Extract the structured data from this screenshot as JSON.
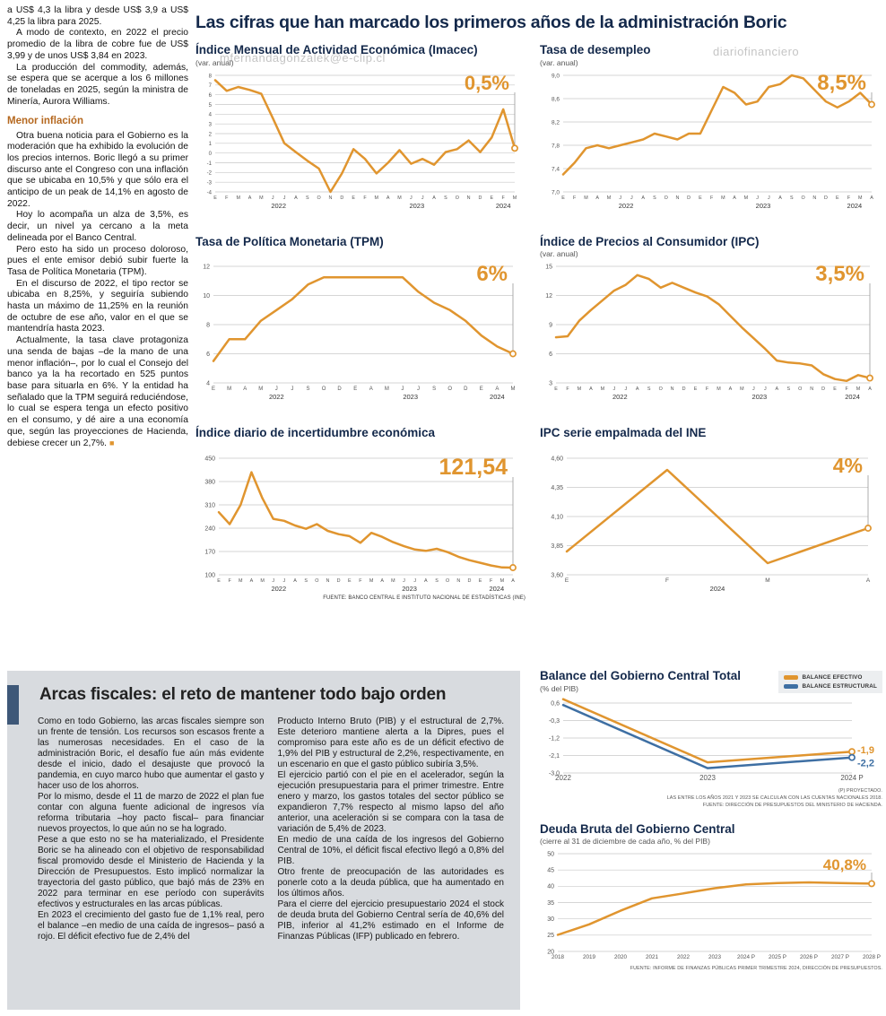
{
  "theme": {
    "orange": "#E0952F",
    "blue": "#3E6FA3",
    "navy": "#14294B",
    "panel": "#D8DBDF",
    "subhead": "#B5681F",
    "bar": "#3E5878"
  },
  "watermarks": {
    "mid": "mfernandagonzalek@e-clip.cl",
    "top_right": "diariofinanciero",
    "bottom": "mfernandagonzalek@e-clip.cl"
  },
  "left_article": {
    "paragraphs": [
      "a US$ 4,3 la libra y desde US$ 3,9 a US$ 4,25 la libra para 2025.",
      "A modo de contexto, en 2022 el precio promedio de la libra de cobre fue de US$ 3,99 y de unos US$ 3,84 en 2023.",
      "La producción del commodity, además, se espera que se acerque a los 6 millones de toneladas en 2025, según la ministra de Minería, Aurora Williams."
    ],
    "subhead": "Menor inflación",
    "paragraphs2": [
      "Otra buena noticia para el Gobierno es la moderación que ha exhibido la evolución de los precios internos. Boric llegó a su primer discurso ante el Congreso con una inflación que se ubicaba en 10,5% y que sólo era el anticipo de un peak de 14,1% en agosto de 2022.",
      "Hoy lo acompaña un alza de 3,5%, es decir, un nivel ya cercano a la meta delineada por el Banco Central.",
      "Pero esto ha sido un proceso doloroso, pues el ente emisor debió subir fuerte la Tasa de Política Monetaria (TPM).",
      "En el discurso de 2022, el tipo rector se ubicaba en 8,25%, y seguiría subiendo hasta un máximo de 11,25% en la reunión de octubre de ese año, valor en el que se mantendría hasta 2023.",
      "Actualmente, la tasa clave protagoniza una senda de bajas –de la mano de una menor inflación–, por lo cual el Consejo del banco ya la ha recortado en 525 puntos base para situarla en 6%. Y la entidad ha señalado que la TPM seguirá reduciéndose, lo cual se espera tenga un efecto positivo en el consumo, y dé aire a una economía que, según las proyecciones de Hacienda, debiese crecer un 2,7%."
    ],
    "end_mark": "■"
  },
  "main": {
    "title": "Las cifras que han marcado los primeros años de la administración Boric",
    "source": "FUENTE: BANCO CENTRAL E INSTITUTO NACIONAL DE ESTADÍSTICAS (INE)"
  },
  "fiscal": {
    "title": "Arcas fiscales: el reto de mantener todo bajo orden",
    "col1": [
      "Como en todo Gobierno, las arcas fiscales siempre son un frente de tensión. Los recursos son escasos frente a las numerosas necesidades. En el caso de la administración Boric, el desafío fue aún más evidente desde el inicio, dado el desajuste que provocó la pandemia, en cuyo marco hubo que aumentar el gasto y hacer uso de los ahorros.",
      "Por lo mismo, desde el 11 de marzo de 2022 el plan fue contar con alguna fuente adicional de ingresos vía reforma tributaria –hoy pacto fiscal– para financiar nuevos proyectos, lo que aún no se ha logrado.",
      "Pese a que esto no se ha materializado, el Presidente Boric se ha alineado con el objetivo de responsabilidad fiscal promovido desde el Ministerio de Hacienda y la Dirección de Presupuestos. Esto implicó normalizar la trayectoria del gasto público, que bajó más de 23% en 2022 para terminar en ese período con superávits efectivos y estructurales en las arcas públicas.",
      "En 2023 el crecimiento del gasto fue de 1,1% real, pero el balance –en medio de una caída de ingresos– pasó a rojo. El déficit efectivo fue de 2,4% del"
    ],
    "col2": [
      "Producto Interno Bruto (PIB) y el estructural de 2,7%. Este deterioro mantiene alerta a la Dipres, pues el compromiso para este año es de un déficit efectivo de 1,9% del PIB y estructural de 2,2%, respectivamente, en un escenario en que el gasto público subiría 3,5%.",
      "El ejercicio partió con el pie en el acelerador, según la ejecución presupuestaria para el primer trimestre. Entre enero y marzo, los gastos totales del sector público se expandieron 7,7% respecto al mismo lapso del año anterior, una aceleración si se compara con la tasa de variación de 5,4% de 2023.",
      "En medio de una caída de los ingresos del Gobierno Central de 10%, el déficit fiscal efectivo llegó a 0,8% del PIB.",
      "Otro frente de preocupación de las autoridades es ponerle coto a la deuda pública, que ha aumentado en los últimos años.",
      "Para el cierre del ejercicio presupuestario 2024 el stock de deuda bruta del Gobierno Central sería de 40,6% del PIB, inferior al 41,2% estimado en el Informe de Finanzas Públicas (IFP) publicado en febrero."
    ]
  },
  "chart_data": [
    {
      "id": "imacec",
      "type": "line",
      "title": "Índice Mensual de Actividad Económica (Imacec)",
      "subtitle": "(var. anual)",
      "value_label": "0,5%",
      "ylim": [
        -4,
        8
      ],
      "yticks": [
        8,
        7,
        6,
        5,
        4,
        3,
        2,
        1,
        0,
        -1,
        -2,
        -3,
        -4
      ],
      "ytick_labels": [
        "8",
        "7",
        "6",
        "5",
        "4",
        "3",
        "2",
        "1",
        "0",
        "-1",
        "-2",
        "-3",
        "-4"
      ],
      "x_labels": [
        "E",
        "F",
        "M",
        "A",
        "M",
        "J",
        "J",
        "A",
        "S",
        "O",
        "N",
        "D",
        "E",
        "F",
        "M",
        "A",
        "M",
        "J",
        "J",
        "A",
        "S",
        "O",
        "N",
        "D",
        "E",
        "F",
        "M"
      ],
      "year_groups": [
        {
          "label": "2022",
          "start": 0,
          "end": 11
        },
        {
          "label": "2023",
          "start": 12,
          "end": 23
        },
        {
          "label": "2024",
          "start": 24,
          "end": 26
        }
      ],
      "series": [
        {
          "name": "Imacec",
          "color": "#E0952F",
          "marker": true,
          "values": [
            7.5,
            6.4,
            6.8,
            6.5,
            6.1,
            3.6,
            1.0,
            0.1,
            -0.8,
            -1.6,
            -4.0,
            -2.1,
            0.4,
            -0.6,
            -2.1,
            -1.0,
            0.3,
            -1.1,
            -0.6,
            -1.2,
            0.1,
            0.4,
            1.3,
            0.1,
            1.6,
            4.5,
            0.5
          ]
        }
      ],
      "r": {
        "ml": 22,
        "mr": 12,
        "mt": 8,
        "mb": 22,
        "yfs": 6,
        "xfs": 5.4,
        "vfs": 22,
        "vy": 24
      }
    },
    {
      "id": "desempleo",
      "type": "line",
      "title": "Tasa de desempleo",
      "subtitle": "(var. anual)",
      "value_label": "8,5%",
      "ylim": [
        7.0,
        9.0
      ],
      "yticks": [
        9.0,
        8.6,
        8.2,
        7.8,
        7.4,
        7.0
      ],
      "ytick_labels": [
        "9,0",
        "8,6",
        "8,2",
        "7,8",
        "7,4",
        "7,0"
      ],
      "x_labels": [
        "E",
        "F",
        "M",
        "A",
        "M",
        "J",
        "J",
        "A",
        "S",
        "O",
        "N",
        "D",
        "E",
        "F",
        "M",
        "A",
        "M",
        "J",
        "J",
        "A",
        "S",
        "O",
        "N",
        "D",
        "E",
        "F",
        "M",
        "A"
      ],
      "year_groups": [
        {
          "label": "2022",
          "start": 0,
          "end": 11
        },
        {
          "label": "2023",
          "start": 12,
          "end": 23
        },
        {
          "label": "2024",
          "start": 24,
          "end": 27
        }
      ],
      "series": [
        {
          "name": "Tasa de desempleo",
          "color": "#E0952F",
          "marker": true,
          "values": [
            7.3,
            7.5,
            7.75,
            7.8,
            7.75,
            7.8,
            7.85,
            7.9,
            8.0,
            7.95,
            7.9,
            8.0,
            8.0,
            8.4,
            8.8,
            8.7,
            8.5,
            8.55,
            8.8,
            8.85,
            9.0,
            8.95,
            8.75,
            8.55,
            8.45,
            8.55,
            8.7,
            8.5
          ]
        }
      ],
      "r": {
        "ml": 26,
        "mr": 12,
        "mt": 8,
        "mb": 22,
        "yfs": 6.5,
        "xfs": 5.4,
        "vfs": 24,
        "vy": 24
      }
    },
    {
      "id": "tpm",
      "type": "line",
      "title": "Tasa de Política Monetaria (TPM)",
      "subtitle": "",
      "value_label": "6%",
      "ylim": [
        4,
        12
      ],
      "yticks": [
        12,
        10,
        8,
        6,
        4
      ],
      "ytick_labels": [
        "12",
        "10",
        "8",
        "6",
        "4"
      ],
      "x_labels": [
        "E",
        "M",
        "A",
        "M",
        "J",
        "J",
        "S",
        "O",
        "D",
        "E",
        "A",
        "M",
        "J",
        "J",
        "S",
        "O",
        "D",
        "E",
        "A",
        "M"
      ],
      "year_groups": [
        {
          "label": "2022",
          "start": 0,
          "end": 8
        },
        {
          "label": "2023",
          "start": 9,
          "end": 16
        },
        {
          "label": "2024",
          "start": 17,
          "end": 19
        }
      ],
      "series": [
        {
          "name": "TPM",
          "color": "#E0952F",
          "marker": true,
          "values": [
            5.5,
            7.0,
            7.0,
            8.25,
            9.0,
            9.75,
            10.75,
            11.25,
            11.25,
            11.25,
            11.25,
            11.25,
            11.25,
            10.25,
            9.5,
            9.0,
            8.25,
            7.25,
            6.5,
            6.0
          ]
        }
      ],
      "r": {
        "ml": 20,
        "mr": 14,
        "mt": 8,
        "mb": 22,
        "yfs": 7,
        "xfs": 6,
        "vfs": 24,
        "vy": 24
      }
    },
    {
      "id": "ipc",
      "type": "line",
      "title": "Índice de Precios al Consumidor (IPC)",
      "subtitle": "(var. anual)",
      "value_label": "3,5%",
      "ylim": [
        3,
        15
      ],
      "yticks": [
        15,
        12,
        9,
        6,
        3
      ],
      "ytick_labels": [
        "15",
        "12",
        "9",
        "6",
        "3"
      ],
      "x_labels": [
        "E",
        "F",
        "M",
        "A",
        "M",
        "J",
        "J",
        "A",
        "S",
        "O",
        "N",
        "D",
        "E",
        "F",
        "M",
        "A",
        "M",
        "J",
        "J",
        "A",
        "S",
        "O",
        "N",
        "D",
        "E",
        "F",
        "M",
        "A"
      ],
      "year_groups": [
        {
          "label": "2022",
          "start": 0,
          "end": 11
        },
        {
          "label": "2023",
          "start": 12,
          "end": 23
        },
        {
          "label": "2024",
          "start": 24,
          "end": 27
        }
      ],
      "series": [
        {
          "name": "IPC",
          "color": "#E0952F",
          "marker": true,
          "values": [
            7.7,
            7.8,
            9.4,
            10.5,
            11.5,
            12.5,
            13.1,
            14.1,
            13.7,
            12.8,
            13.3,
            12.8,
            12.3,
            11.9,
            11.1,
            9.9,
            8.7,
            7.6,
            6.5,
            5.3,
            5.1,
            5.0,
            4.8,
            3.9,
            3.4,
            3.2,
            3.8,
            3.5
          ]
        }
      ],
      "r": {
        "ml": 18,
        "mr": 14,
        "mt": 8,
        "mb": 22,
        "yfs": 7,
        "xfs": 5.4,
        "vfs": 24,
        "vy": 24
      }
    },
    {
      "id": "incertidumbre",
      "type": "line",
      "title": "Índice diario de incertidumbre económica",
      "subtitle": "",
      "value_label": "121,54",
      "ylim": [
        100,
        450
      ],
      "yticks": [
        450,
        380,
        310,
        240,
        170,
        100
      ],
      "ytick_labels": [
        "450",
        "380",
        "310",
        "240",
        "170",
        "100"
      ],
      "x_labels": [
        "E",
        "F",
        "M",
        "A",
        "M",
        "J",
        "J",
        "A",
        "S",
        "O",
        "N",
        "D",
        "E",
        "F",
        "M",
        "A",
        "M",
        "J",
        "J",
        "A",
        "S",
        "O",
        "N",
        "D",
        "E",
        "F",
        "M",
        "A"
      ],
      "year_groups": [
        {
          "label": "2022",
          "start": 0,
          "end": 11
        },
        {
          "label": "2023",
          "start": 12,
          "end": 23
        },
        {
          "label": "2024",
          "start": 24,
          "end": 27
        }
      ],
      "series": [
        {
          "name": "Incertidumbre económica",
          "color": "#E0952F",
          "marker": true,
          "values": [
            288,
            252,
            310,
            408,
            330,
            268,
            262,
            248,
            238,
            252,
            232,
            222,
            216,
            196,
            226,
            214,
            198,
            186,
            176,
            172,
            178,
            168,
            154,
            144,
            136,
            128,
            122,
            121.54
          ]
        }
      ],
      "r": {
        "ml": 26,
        "mr": 14,
        "mt": 8,
        "mb": 22,
        "yfs": 7,
        "xfs": 5.4,
        "vfs": 25,
        "vy": 26
      }
    },
    {
      "id": "ipc_ine",
      "type": "line",
      "title": "IPC serie empalmada del INE",
      "subtitle": "",
      "value_label": "4%",
      "ylim": [
        3.6,
        4.6
      ],
      "yticks": [
        4.6,
        4.35,
        4.1,
        3.85,
        3.6
      ],
      "ytick_labels": [
        "4,60",
        "4,35",
        "4,10",
        "3,85",
        "3,60"
      ],
      "x_labels": [
        "E",
        "F",
        "M",
        "A"
      ],
      "year_groups": [
        {
          "label": "2024",
          "start": 0,
          "end": 3
        }
      ],
      "series": [
        {
          "name": "IPC serie empalmada",
          "color": "#E0952F",
          "marker": true,
          "values": [
            3.8,
            4.5,
            3.7,
            4.0
          ]
        }
      ],
      "r": {
        "ml": 30,
        "mr": 16,
        "mt": 8,
        "mb": 22,
        "yfs": 7,
        "xfs": 6.5,
        "vfs": 23,
        "vy": 24
      }
    },
    {
      "id": "balance",
      "type": "line",
      "title": "Balance del Gobierno Central Total",
      "subtitle": "(% del PIB)",
      "ylim": [
        -3.0,
        0.6
      ],
      "yticks": [
        0.6,
        -0.3,
        -1.2,
        -2.1,
        -3.0
      ],
      "ytick_labels": [
        "0,6",
        "-0,3",
        "-1,2",
        "-2,1",
        "-3,0"
      ],
      "x_labels": [
        "2022",
        "2023",
        "2024 P"
      ],
      "series": [
        {
          "name": "BALANCE EFECTIVO",
          "color": "#E0952F",
          "marker": true,
          "end_label": "-1,9",
          "end_dy": -1,
          "values": [
            0.8,
            -2.45,
            -1.9
          ]
        },
        {
          "name": "BALANCE ESTRUCTURAL",
          "color": "#3E6FA3",
          "marker": true,
          "end_label": "-2,2",
          "end_dy": 7,
          "values": [
            0.5,
            -2.75,
            -2.2
          ]
        }
      ],
      "notes": [
        "(P) PROYECTADO.",
        "LAS ENTRE LOS AÑOS 2021 Y 2023 SE CALCULAN CON LAS CUENTAS NACIONALES 2018.",
        "FUENTE: DIRECCIÓN DE PRESUPUESTOS DEL MINISTERIO DE HACIENDA."
      ],
      "r": {
        "ml": 26,
        "mr": 34,
        "mt": 10,
        "mb": 14,
        "yfs": 7,
        "xfs": 8
      }
    },
    {
      "id": "deuda",
      "type": "line",
      "title": "Deuda Bruta del Gobierno Central",
      "subtitle": "(cierre al 31 de diciembre de cada año, % del PIB)",
      "value_label": "40,8%",
      "ylim": [
        20,
        50
      ],
      "yticks": [
        50,
        45,
        40,
        35,
        30,
        25,
        20
      ],
      "ytick_labels": [
        "50",
        "45",
        "40",
        "35",
        "30",
        "25",
        "20"
      ],
      "x_labels": [
        "2018",
        "2019",
        "2020",
        "2021",
        "2022",
        "2023",
        "2024 P",
        "2025 P",
        "2026 P",
        "2027 P",
        "2028 P"
      ],
      "series": [
        {
          "name": "Deuda bruta",
          "color": "#E0952F",
          "marker": true,
          "values": [
            25.1,
            28.3,
            32.5,
            36.3,
            37.8,
            39.4,
            40.6,
            41.0,
            41.2,
            41.0,
            40.8
          ]
        }
      ],
      "notes": [
        "FUENTE: INFORME DE FINANZAS PÚBLICAS PRIMER TRIMESTRE 2024, DIRECCIÓN DE PRESUPUESTOS."
      ],
      "r": {
        "ml": 20,
        "mr": 12,
        "mt": 8,
        "mb": 13,
        "yfs": 7,
        "xfs": 6.3,
        "vfs": 17,
        "vy": 26
      }
    }
  ]
}
